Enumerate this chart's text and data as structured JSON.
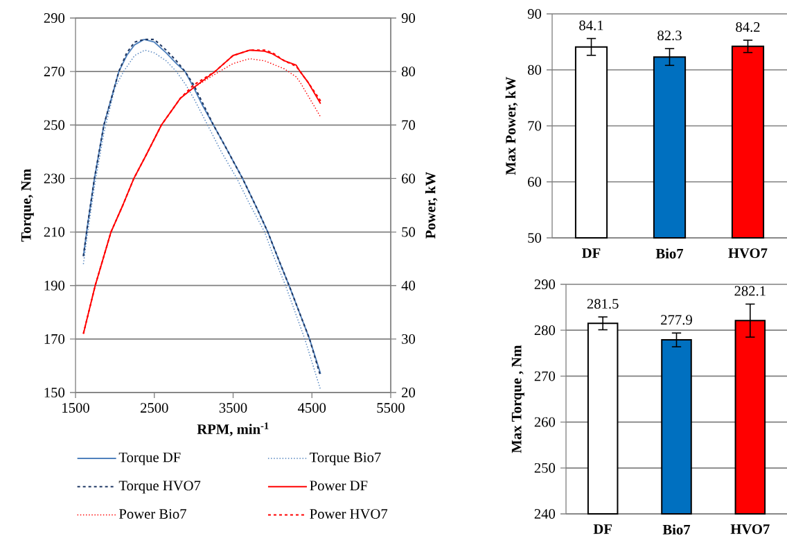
{
  "chart_data": [
    {
      "type": "line",
      "xlabel": "RPM, min$^{-1}$",
      "ylabel": "Torque, Nm",
      "y2label": "Power, kW",
      "xlim": [
        1500,
        5500
      ],
      "xticks": [
        1500,
        2500,
        3500,
        4500,
        5500
      ],
      "ylim": [
        150,
        290
      ],
      "yticks": [
        150,
        170,
        190,
        210,
        230,
        250,
        270,
        290
      ],
      "y2lim": [
        20,
        90
      ],
      "y2ticks": [
        20,
        30,
        40,
        50,
        60,
        70,
        80,
        90
      ],
      "grid": "y",
      "legend": "bottom",
      "series": [
        {
          "name": "Torque DF",
          "color": "#4f81bd",
          "line_style": "solid",
          "x": [
            1600,
            1650,
            1740,
            1860,
            2050,
            2150,
            2250,
            2370,
            2500,
            2650,
            2780,
            2890,
            3000,
            3100,
            3250,
            3400,
            3620,
            3800,
            3940,
            4100,
            4210,
            4340,
            4470,
            4610
          ],
          "values": [
            201,
            212,
            230,
            250,
            270,
            276,
            280,
            282,
            281,
            277,
            273,
            270,
            264,
            258,
            250,
            242,
            230,
            219,
            210,
            198,
            190,
            180,
            170,
            157
          ]
        },
        {
          "name": "Torque Bio7",
          "color": "#4f81bd",
          "line_style": "dotted",
          "x": [
            1600,
            1650,
            1740,
            1860,
            2000,
            2110,
            2250,
            2380,
            2500,
            2650,
            2780,
            2900,
            3000,
            3176,
            3350,
            3548,
            3700,
            3900,
            4000,
            4165,
            4300,
            4410,
            4610
          ],
          "values": [
            198,
            209,
            227,
            247,
            264,
            270,
            276,
            278,
            277,
            274,
            270,
            265,
            260,
            250,
            240,
            230,
            221,
            210,
            202,
            190,
            179,
            170,
            151
          ]
        },
        {
          "name": "Torque HVO7",
          "color": "#1f3864",
          "line_style": "dashed",
          "x": [
            1600,
            1650,
            1740,
            1860,
            2050,
            2150,
            2250,
            2370,
            2500,
            2650,
            2780,
            2890,
            3000,
            3100,
            3250,
            3400,
            3620,
            3800,
            3940,
            4100,
            4210,
            4340,
            4470,
            4610
          ],
          "values": [
            201,
            212,
            230,
            250,
            270,
            277,
            281,
            282,
            282,
            278,
            274,
            270,
            265,
            259,
            250,
            242,
            230,
            219,
            210,
            198,
            190,
            180,
            170,
            156
          ]
        },
        {
          "name": "Power DF",
          "color": "#ff0000",
          "line_style": "solid",
          "axis": "y2",
          "x": [
            1600,
            1750,
            1950,
            2100,
            2240,
            2400,
            2590,
            2830,
            3000,
            3270,
            3500,
            3710,
            3900,
            4000,
            4150,
            4300,
            4350,
            4450,
            4610
          ],
          "values": [
            31,
            40,
            50,
            55,
            60,
            64.5,
            70,
            75,
            77,
            80,
            83,
            84,
            83.8,
            83.3,
            82,
            81.2,
            80,
            78,
            74
          ]
        },
        {
          "name": "Power Bio7",
          "color": "#ff0000",
          "line_style": "dotted",
          "axis": "y2",
          "x": [
            1600,
            1750,
            1950,
            2100,
            2240,
            2400,
            2590,
            2830,
            3000,
            3270,
            3500,
            3710,
            3900,
            4000,
            4150,
            4300,
            4350,
            4450,
            4610
          ],
          "values": [
            31,
            40,
            50,
            55,
            60,
            64.5,
            70,
            75,
            77,
            79.5,
            81.5,
            82.4,
            82,
            81.4,
            80.5,
            79,
            78,
            75.5,
            71.5
          ]
        },
        {
          "name": "Power HVO7",
          "color": "#ff0000",
          "line_style": "dashed",
          "axis": "y2",
          "x": [
            1600,
            1750,
            1950,
            2100,
            2240,
            2400,
            2590,
            2830,
            3000,
            3270,
            3500,
            3710,
            3900,
            4000,
            4150,
            4300,
            4350,
            4450,
            4610
          ],
          "values": [
            31,
            40,
            50,
            55,
            60,
            64.5,
            70,
            75,
            77.5,
            80,
            83,
            84,
            84,
            83.5,
            82,
            81,
            80,
            78,
            74.5
          ]
        }
      ]
    },
    {
      "type": "bar",
      "ylabel": "Max Power, kW",
      "categories": [
        "DF",
        "Bio7",
        "HVO7"
      ],
      "values": [
        84.1,
        82.3,
        84.2
      ],
      "errors": [
        1.5,
        1.5,
        1.1
      ],
      "colors": [
        "#ffffff",
        "#0070c0",
        "#ff0000"
      ],
      "ylim": [
        50,
        90
      ],
      "yticks": [
        50,
        60,
        70,
        80,
        90
      ],
      "grid": "y",
      "data_labels": true
    },
    {
      "type": "bar",
      "ylabel": "Max Torque , Nm",
      "categories": [
        "DF",
        "Bio7",
        "HVO7"
      ],
      "values": [
        281.5,
        277.9,
        282.1
      ],
      "errors": [
        1.4,
        1.5,
        3.6
      ],
      "colors": [
        "#ffffff",
        "#0070c0",
        "#ff0000"
      ],
      "ylim": [
        240,
        290
      ],
      "yticks": [
        240,
        250,
        260,
        270,
        280,
        290
      ],
      "grid": "y",
      "data_labels": true
    }
  ]
}
